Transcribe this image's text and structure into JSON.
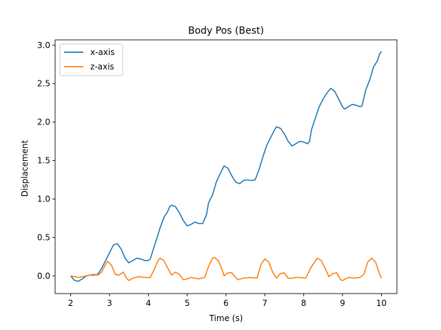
{
  "chart_data": {
    "type": "line",
    "title": "Body Pos (Best)",
    "xlabel": "Time (s)",
    "ylabel": "Displacement",
    "xlim": [
      1.6,
      10.4
    ],
    "ylim": [
      -0.23,
      3.07
    ],
    "xticks": [
      2,
      3,
      4,
      5,
      6,
      7,
      8,
      9,
      10
    ],
    "yticks": [
      0.0,
      0.5,
      1.0,
      1.5,
      2.0,
      2.5,
      3.0
    ],
    "ytick_labels": [
      "0.0",
      "0.5",
      "1.0",
      "1.5",
      "2.0",
      "2.5",
      "3.0"
    ],
    "grid": false,
    "legend_position": "top-left",
    "series": [
      {
        "name": "x-axis",
        "color": "#1f77b4",
        "points": [
          [
            2.0,
            0.0
          ],
          [
            2.1,
            -0.06
          ],
          [
            2.2,
            -0.07
          ],
          [
            2.3,
            -0.04
          ],
          [
            2.4,
            0.0
          ],
          [
            2.5,
            0.01
          ],
          [
            2.6,
            0.01
          ],
          [
            2.7,
            0.02
          ],
          [
            2.8,
            0.1
          ],
          [
            2.9,
            0.2
          ],
          [
            3.0,
            0.3
          ],
          [
            3.1,
            0.4
          ],
          [
            3.2,
            0.42
          ],
          [
            3.3,
            0.35
          ],
          [
            3.4,
            0.23
          ],
          [
            3.5,
            0.17
          ],
          [
            3.6,
            0.2
          ],
          [
            3.7,
            0.23
          ],
          [
            3.8,
            0.22
          ],
          [
            3.9,
            0.2
          ],
          [
            4.0,
            0.2
          ],
          [
            4.05,
            0.22
          ],
          [
            4.15,
            0.38
          ],
          [
            4.3,
            0.62
          ],
          [
            4.4,
            0.76
          ],
          [
            4.5,
            0.84
          ],
          [
            4.55,
            0.9
          ],
          [
            4.6,
            0.92
          ],
          [
            4.7,
            0.9
          ],
          [
            4.8,
            0.82
          ],
          [
            4.9,
            0.72
          ],
          [
            5.0,
            0.65
          ],
          [
            5.1,
            0.67
          ],
          [
            5.2,
            0.7
          ],
          [
            5.3,
            0.68
          ],
          [
            5.4,
            0.68
          ],
          [
            5.5,
            0.8
          ],
          [
            5.55,
            0.95
          ],
          [
            5.65,
            1.05
          ],
          [
            5.75,
            1.22
          ],
          [
            5.85,
            1.33
          ],
          [
            5.95,
            1.43
          ],
          [
            6.05,
            1.4
          ],
          [
            6.15,
            1.3
          ],
          [
            6.25,
            1.22
          ],
          [
            6.35,
            1.2
          ],
          [
            6.45,
            1.24
          ],
          [
            6.55,
            1.25
          ],
          [
            6.65,
            1.24
          ],
          [
            6.75,
            1.25
          ],
          [
            6.85,
            1.38
          ],
          [
            6.95,
            1.55
          ],
          [
            7.05,
            1.7
          ],
          [
            7.15,
            1.8
          ],
          [
            7.25,
            1.9
          ],
          [
            7.3,
            1.94
          ],
          [
            7.4,
            1.92
          ],
          [
            7.5,
            1.85
          ],
          [
            7.6,
            1.75
          ],
          [
            7.7,
            1.69
          ],
          [
            7.8,
            1.72
          ],
          [
            7.9,
            1.75
          ],
          [
            8.0,
            1.74
          ],
          [
            8.1,
            1.72
          ],
          [
            8.15,
            1.75
          ],
          [
            8.2,
            1.9
          ],
          [
            8.3,
            2.05
          ],
          [
            8.4,
            2.2
          ],
          [
            8.5,
            2.3
          ],
          [
            8.6,
            2.38
          ],
          [
            8.7,
            2.44
          ],
          [
            8.8,
            2.4
          ],
          [
            8.9,
            2.3
          ],
          [
            9.0,
            2.2
          ],
          [
            9.05,
            2.17
          ],
          [
            9.15,
            2.2
          ],
          [
            9.25,
            2.23
          ],
          [
            9.35,
            2.22
          ],
          [
            9.45,
            2.2
          ],
          [
            9.5,
            2.21
          ],
          [
            9.6,
            2.42
          ],
          [
            9.7,
            2.55
          ],
          [
            9.8,
            2.72
          ],
          [
            9.9,
            2.8
          ],
          [
            9.95,
            2.88
          ],
          [
            10.0,
            2.92
          ]
        ]
      },
      {
        "name": "z-axis",
        "color": "#ff7f0e",
        "points": [
          [
            2.0,
            0.0
          ],
          [
            2.2,
            -0.02
          ],
          [
            2.4,
            0.0
          ],
          [
            2.6,
            0.02
          ],
          [
            2.7,
            0.01
          ],
          [
            2.8,
            0.05
          ],
          [
            2.9,
            0.15
          ],
          [
            2.95,
            0.19
          ],
          [
            3.05,
            0.14
          ],
          [
            3.15,
            0.02
          ],
          [
            3.25,
            0.01
          ],
          [
            3.35,
            0.05
          ],
          [
            3.45,
            -0.04
          ],
          [
            3.5,
            -0.06
          ],
          [
            3.6,
            -0.03
          ],
          [
            3.75,
            -0.01
          ],
          [
            3.9,
            -0.02
          ],
          [
            4.05,
            -0.02
          ],
          [
            4.15,
            0.08
          ],
          [
            4.25,
            0.2
          ],
          [
            4.3,
            0.23
          ],
          [
            4.4,
            0.2
          ],
          [
            4.5,
            0.1
          ],
          [
            4.6,
            0.01
          ],
          [
            4.7,
            0.05
          ],
          [
            4.8,
            0.02
          ],
          [
            4.9,
            -0.05
          ],
          [
            5.0,
            -0.04
          ],
          [
            5.1,
            -0.02
          ],
          [
            5.3,
            -0.04
          ],
          [
            5.45,
            -0.02
          ],
          [
            5.55,
            0.12
          ],
          [
            5.65,
            0.23
          ],
          [
            5.7,
            0.24
          ],
          [
            5.8,
            0.2
          ],
          [
            5.9,
            0.08
          ],
          [
            5.95,
            0.0
          ],
          [
            6.05,
            0.04
          ],
          [
            6.15,
            0.04
          ],
          [
            6.3,
            -0.05
          ],
          [
            6.45,
            -0.03
          ],
          [
            6.6,
            -0.02
          ],
          [
            6.8,
            -0.03
          ],
          [
            6.9,
            0.15
          ],
          [
            7.0,
            0.22
          ],
          [
            7.1,
            0.18
          ],
          [
            7.2,
            0.05
          ],
          [
            7.3,
            -0.03
          ],
          [
            7.4,
            0.03
          ],
          [
            7.5,
            0.04
          ],
          [
            7.6,
            -0.03
          ],
          [
            7.7,
            -0.03
          ],
          [
            7.8,
            -0.02
          ],
          [
            7.9,
            -0.02
          ],
          [
            8.05,
            -0.03
          ],
          [
            8.2,
            0.12
          ],
          [
            8.35,
            0.23
          ],
          [
            8.45,
            0.2
          ],
          [
            8.55,
            0.1
          ],
          [
            8.65,
            -0.01
          ],
          [
            8.75,
            0.03
          ],
          [
            8.85,
            0.04
          ],
          [
            8.95,
            -0.05
          ],
          [
            9.0,
            -0.06
          ],
          [
            9.15,
            -0.02
          ],
          [
            9.3,
            -0.03
          ],
          [
            9.45,
            -0.02
          ],
          [
            9.55,
            0.02
          ],
          [
            9.65,
            0.18
          ],
          [
            9.75,
            0.23
          ],
          [
            9.85,
            0.18
          ],
          [
            9.95,
            0.03
          ],
          [
            10.0,
            -0.03
          ]
        ]
      }
    ]
  }
}
